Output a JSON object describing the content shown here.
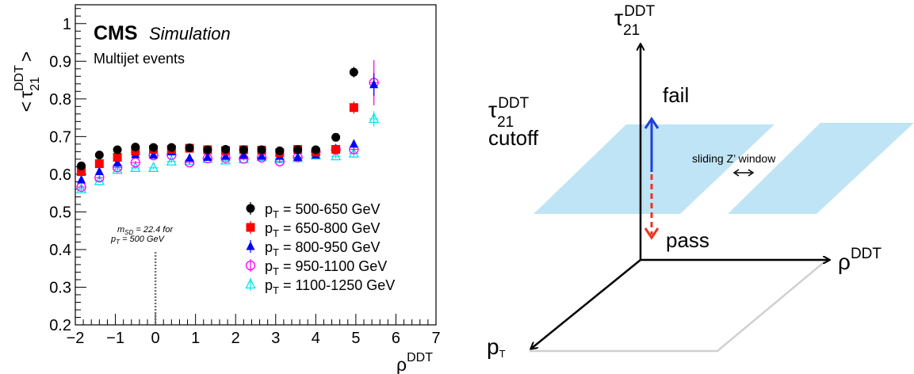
{
  "chart_data": [
    {
      "type": "scatter",
      "title": "",
      "cms_label": "CMS",
      "cms_sublabel": "Simulation",
      "subtitle": "Multijet events",
      "xlabel": "ρ",
      "xlabel_sup": "DDT",
      "ylabel_open": "<",
      "ylabel_tau": "τ",
      "ylabel_sub": "21",
      "ylabel_sup": "DDT",
      "ylabel_close": ">",
      "xlim": [
        -2,
        7
      ],
      "ylim": [
        0.2,
        1.05
      ],
      "xticks": [
        -2,
        -1,
        0,
        1,
        2,
        3,
        4,
        5,
        6,
        7
      ],
      "xtick_labels": [
        "−2",
        "−1",
        "0",
        "1",
        "2",
        "3",
        "4",
        "5",
        "6",
        "7"
      ],
      "yticks": [
        0.2,
        0.3,
        0.4,
        0.5,
        0.6,
        0.7,
        0.8,
        0.9,
        1.0
      ],
      "ytick_labels": [
        "0.2",
        "0.3",
        "0.4",
        "0.5",
        "0.6",
        "0.7",
        "0.8",
        "0.9",
        "1"
      ],
      "grid": false,
      "legend_position": "bottom-right",
      "annotation": {
        "x": 0,
        "line1": "m",
        "line1_sub": "SD",
        "line1_rest": " = 22.4 for",
        "line2": "p",
        "line2_sub": "T",
        "line2_rest": " = 500 GeV"
      },
      "series": [
        {
          "name_main": "p",
          "name_sub": "T",
          "name_rest": " = 500-650 GeV",
          "marker": "filled-circle",
          "color": "#000000",
          "x": [
            -1.85,
            -1.4,
            -0.95,
            -0.5,
            -0.05,
            0.4,
            0.85,
            1.3,
            1.75,
            2.2,
            2.65,
            3.1,
            3.55,
            4.0,
            4.5,
            4.95
          ],
          "y": [
            0.622,
            0.651,
            0.665,
            0.672,
            0.671,
            0.671,
            0.67,
            0.665,
            0.666,
            0.665,
            0.665,
            0.662,
            0.665,
            0.665,
            0.698,
            0.871
          ],
          "err": [
            0.004,
            0.004,
            0.004,
            0.004,
            0.004,
            0.004,
            0.004,
            0.004,
            0.004,
            0.004,
            0.004,
            0.004,
            0.004,
            0.004,
            0.006,
            0.014
          ]
        },
        {
          "name_main": "p",
          "name_sub": "T",
          "name_rest": " = 650-800 GeV",
          "marker": "filled-square",
          "color": "#ff0000",
          "x": [
            -1.85,
            -1.4,
            -0.95,
            -0.5,
            -0.05,
            0.4,
            0.85,
            1.3,
            1.75,
            2.2,
            2.65,
            3.1,
            3.55,
            4.0,
            4.5,
            4.95
          ],
          "y": [
            0.607,
            0.628,
            0.645,
            0.661,
            0.666,
            0.666,
            0.669,
            0.665,
            0.663,
            0.665,
            0.664,
            0.657,
            0.666,
            0.659,
            0.666,
            0.777
          ],
          "err": [
            0.004,
            0.004,
            0.004,
            0.004,
            0.004,
            0.004,
            0.004,
            0.004,
            0.004,
            0.004,
            0.004,
            0.004,
            0.004,
            0.004,
            0.006,
            0.016
          ]
        },
        {
          "name_main": "p",
          "name_sub": "T",
          "name_rest": " = 800-950 GeV",
          "marker": "filled-triangle",
          "color": "#0000ff",
          "x": [
            -1.85,
            -1.4,
            -0.95,
            -0.5,
            -0.05,
            0.4,
            0.85,
            1.3,
            1.75,
            2.2,
            2.65,
            3.1,
            3.55,
            4.0,
            4.5,
            4.95,
            5.45
          ],
          "y": [
            0.585,
            0.607,
            0.63,
            0.652,
            0.651,
            0.66,
            0.643,
            0.645,
            0.648,
            0.651,
            0.648,
            0.648,
            0.645,
            0.651,
            0.668,
            0.68,
            0.838
          ],
          "err": [
            0.004,
            0.004,
            0.004,
            0.004,
            0.004,
            0.004,
            0.004,
            0.004,
            0.004,
            0.004,
            0.004,
            0.004,
            0.004,
            0.004,
            0.006,
            0.01,
            0.03
          ]
        },
        {
          "name_main": "p",
          "name_sub": "T",
          "name_rest": " = 950-1100 GeV",
          "marker": "open-circle",
          "color": "#ff00ff",
          "x": [
            -1.85,
            -1.4,
            -0.95,
            -0.5,
            -0.05,
            0.4,
            0.85,
            1.3,
            1.75,
            2.2,
            2.65,
            3.1,
            3.55,
            4.0,
            4.5,
            4.95,
            5.45
          ],
          "y": [
            0.566,
            0.591,
            0.618,
            0.631,
            0.65,
            0.651,
            0.631,
            0.642,
            0.643,
            0.641,
            0.644,
            0.634,
            0.645,
            0.66,
            0.665,
            0.666,
            0.843
          ],
          "err": [
            0.004,
            0.004,
            0.004,
            0.004,
            0.004,
            0.004,
            0.004,
            0.004,
            0.004,
            0.004,
            0.004,
            0.004,
            0.004,
            0.004,
            0.006,
            0.01,
            0.06
          ]
        },
        {
          "name_main": "p",
          "name_sub": "T",
          "name_rest": " = 1100-1250 GeV",
          "marker": "open-triangle",
          "color": "#00e5ee",
          "x": [
            -1.85,
            -1.4,
            -0.95,
            -0.5,
            -0.05,
            0.4,
            0.85,
            1.3,
            1.75,
            2.2,
            2.65,
            3.1,
            3.55,
            4.0,
            4.5,
            4.95,
            5.45
          ],
          "y": [
            0.56,
            0.582,
            0.612,
            0.617,
            0.617,
            0.634,
            0.635,
            0.641,
            0.637,
            0.64,
            0.646,
            0.64,
            0.643,
            0.65,
            0.648,
            0.655,
            0.747
          ],
          "err": [
            0.004,
            0.004,
            0.004,
            0.004,
            0.004,
            0.004,
            0.004,
            0.004,
            0.004,
            0.004,
            0.004,
            0.004,
            0.004,
            0.004,
            0.006,
            0.01,
            0.02
          ]
        }
      ]
    }
  ],
  "diagram": {
    "y_axis_tau": "τ",
    "y_axis_sub": "21",
    "y_axis_sup": "DDT",
    "x_axis_rho": "ρ",
    "x_axis_sup": "DDT",
    "z_axis_p": "p",
    "z_axis_sub": "T",
    "cutoff_tau": "τ",
    "cutoff_sub": "21",
    "cutoff_sup": "DDT",
    "cutoff_word": "cutoff",
    "fail_label": "fail",
    "pass_label": "pass",
    "window_label": "sliding Z’ window",
    "plane_color": "#bfe4f5",
    "fail_color": "#1f3fe0",
    "pass_color": "#ee3322"
  }
}
